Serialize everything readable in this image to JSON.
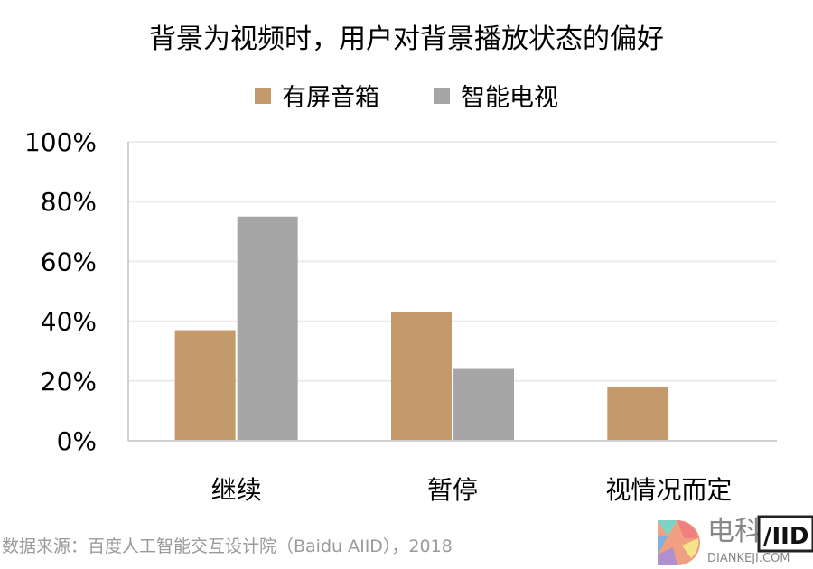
{
  "chart_data": {
    "type": "bar",
    "title": "背景为视频时，用户对背景播放状态的偏好",
    "categories": [
      "继续",
      "暂停",
      "视情况而定"
    ],
    "series": [
      {
        "name": "有屏音箱",
        "color": "#c49a6c",
        "values": [
          37,
          43,
          18
        ]
      },
      {
        "name": "智能电视",
        "color": "#a6a6a6",
        "values": [
          75,
          24,
          0
        ]
      }
    ],
    "yticks": [
      "0%",
      "20%",
      "40%",
      "60%",
      "80%",
      "100%"
    ],
    "ylim": [
      0,
      100
    ],
    "grid": true,
    "legend_position": "top-center",
    "xlabel": "",
    "ylabel": ""
  },
  "source": "数据来源：百度人工智能交互设计院（Baidu AIID），2018",
  "logo": {
    "text": "电科技",
    "sub": "DIANKEJI.COM"
  }
}
